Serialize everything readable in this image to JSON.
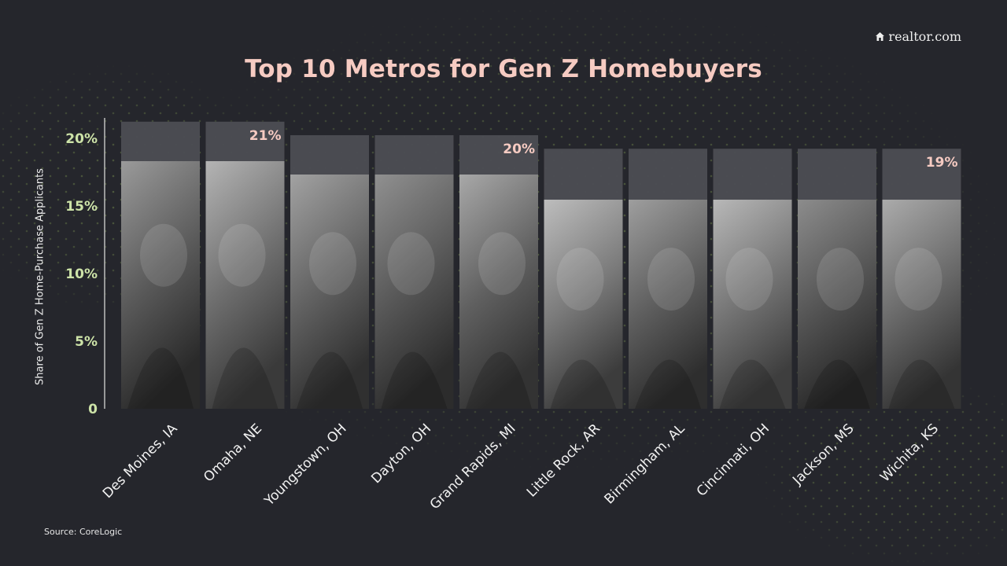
{
  "title": "Top 10 Metros for Gen Z Homebuyers",
  "brand": "realtor.com",
  "source": "Source: CoreLogic",
  "colors": {
    "background": "#25262c",
    "title": "#f6cbc2",
    "tick_label": "#cde3a8",
    "value_label": "#f6cbc2",
    "bar_cap": "#4c4d53"
  },
  "chart_data": {
    "type": "bar",
    "title": "Top 10 Metros for Gen Z Homebuyers",
    "xlabel": "",
    "ylabel": "Share of Gen Z Home-Purchase Applicants",
    "ylim": [
      0,
      20
    ],
    "yticks": [
      {
        "value": 0,
        "label": "0"
      },
      {
        "value": 5,
        "label": "5%"
      },
      {
        "value": 10,
        "label": "10%"
      },
      {
        "value": 15,
        "label": "15%"
      },
      {
        "value": 20,
        "label": "20%"
      }
    ],
    "categories": [
      "Des Moines, IA",
      "Omaha, NE",
      "Youngstown, OH",
      "Dayton, OH",
      "Grand Rapids, MI",
      "Little Rock, AR",
      "Birmingham, AL",
      "Cincinnati, OH",
      "Jackson, MS",
      "Wichita, KS"
    ],
    "values": [
      21,
      21,
      20,
      20,
      20,
      19,
      19,
      19,
      19,
      19
    ],
    "group_labels": [
      {
        "label": "21%",
        "category": "Omaha, NE"
      },
      {
        "label": "20%",
        "category": "Grand Rapids, MI"
      },
      {
        "label": "19%",
        "category": "Wichita, KS"
      }
    ],
    "bar_fill": "black-and-white portrait photos",
    "grid": false,
    "legend": "none"
  }
}
